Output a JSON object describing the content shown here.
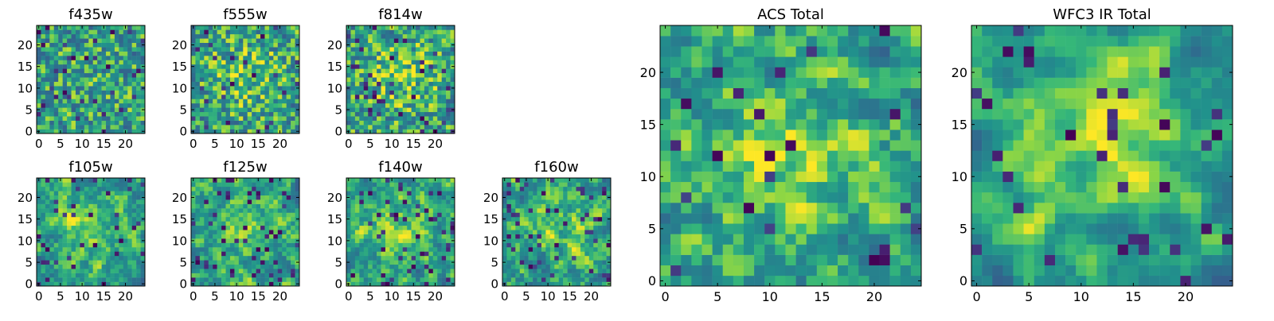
{
  "colormap": "viridis",
  "colors": {
    "viridis_dark": "#440154",
    "viridis_mid": "#21918c",
    "viridis_bright": "#fde725",
    "axis": "#000000",
    "background": "#ffffff"
  },
  "chart_data": [
    {
      "type": "heatmap",
      "title": "f435w",
      "grid_size": 25,
      "xticks": [
        "0",
        "5",
        "10",
        "15",
        "20"
      ],
      "yticks": [
        "0",
        "5",
        "10",
        "15",
        "20"
      ],
      "xlim": [
        -0.5,
        24.5
      ],
      "ylim": [
        -0.5,
        24.5
      ],
      "seed": 11,
      "smooth": 0,
      "blob": 0.05,
      "dark": 0.05
    },
    {
      "type": "heatmap",
      "title": "f555w",
      "grid_size": 25,
      "xticks": [
        "0",
        "5",
        "10",
        "15",
        "20"
      ],
      "yticks": [
        "0",
        "5",
        "10",
        "15",
        "20"
      ],
      "xlim": [
        -0.5,
        24.5
      ],
      "ylim": [
        -0.5,
        24.5
      ],
      "seed": 23,
      "smooth": 0,
      "blob": 0.25,
      "dark": 0.04
    },
    {
      "type": "heatmap",
      "title": "f814w",
      "grid_size": 25,
      "xticks": [
        "0",
        "5",
        "10",
        "15",
        "20"
      ],
      "yticks": [
        "0",
        "5",
        "10",
        "15",
        "20"
      ],
      "xlim": [
        -0.5,
        24.5
      ],
      "ylim": [
        -0.5,
        24.5
      ],
      "seed": 37,
      "smooth": 0,
      "blob": 0.3,
      "dark": 0.06
    },
    {
      "type": "heatmap",
      "title": "f105w",
      "grid_size": 25,
      "xticks": [
        "0",
        "5",
        "10",
        "15",
        "20"
      ],
      "yticks": [
        "0",
        "5",
        "10",
        "15",
        "20"
      ],
      "xlim": [
        -0.5,
        24.5
      ],
      "ylim": [
        -0.5,
        24.5
      ],
      "seed": 41,
      "smooth": 1,
      "blob": 0.35,
      "dark": 0.07
    },
    {
      "type": "heatmap",
      "title": "f125w",
      "grid_size": 25,
      "xticks": [
        "0",
        "5",
        "10",
        "15",
        "20"
      ],
      "yticks": [
        "0",
        "5",
        "10",
        "15",
        "20"
      ],
      "xlim": [
        -0.5,
        24.5
      ],
      "ylim": [
        -0.5,
        24.5
      ],
      "seed": 53,
      "smooth": 1,
      "blob": 0.25,
      "dark": 0.07
    },
    {
      "type": "heatmap",
      "title": "f140w",
      "grid_size": 25,
      "xticks": [
        "0",
        "5",
        "10",
        "15",
        "20"
      ],
      "yticks": [
        "0",
        "5",
        "10",
        "15",
        "20"
      ],
      "xlim": [
        -0.5,
        24.5
      ],
      "ylim": [
        -0.5,
        24.5
      ],
      "seed": 67,
      "smooth": 1,
      "blob": 0.3,
      "dark": 0.08
    },
    {
      "type": "heatmap",
      "title": "f160w",
      "grid_size": 25,
      "xticks": [
        "0",
        "5",
        "10",
        "15",
        "20"
      ],
      "yticks": [
        "0",
        "5",
        "10",
        "15",
        "20"
      ],
      "xlim": [
        -0.5,
        24.5
      ],
      "ylim": [
        -0.5,
        24.5
      ],
      "seed": 79,
      "smooth": 1,
      "blob": 0.3,
      "dark": 0.08
    },
    {
      "type": "heatmap",
      "title": "ACS Total",
      "grid_size": 25,
      "xticks": [
        "0",
        "5",
        "10",
        "15",
        "20"
      ],
      "yticks": [
        "0",
        "5",
        "10",
        "15",
        "20"
      ],
      "xlim": [
        -0.5,
        24.5
      ],
      "ylim": [
        -0.5,
        24.5
      ],
      "seed": 97,
      "smooth": 1,
      "blob": 0.45,
      "dark": 0.04
    },
    {
      "type": "heatmap",
      "title": "WFC3 IR Total",
      "grid_size": 25,
      "xticks": [
        "0",
        "5",
        "10",
        "15",
        "20"
      ],
      "yticks": [
        "0",
        "5",
        "10",
        "15",
        "20"
      ],
      "xlim": [
        -0.5,
        24.5
      ],
      "ylim": [
        -0.5,
        24.5
      ],
      "seed": 131,
      "smooth": 2,
      "blob": 0.55,
      "dark": 0.06
    }
  ]
}
